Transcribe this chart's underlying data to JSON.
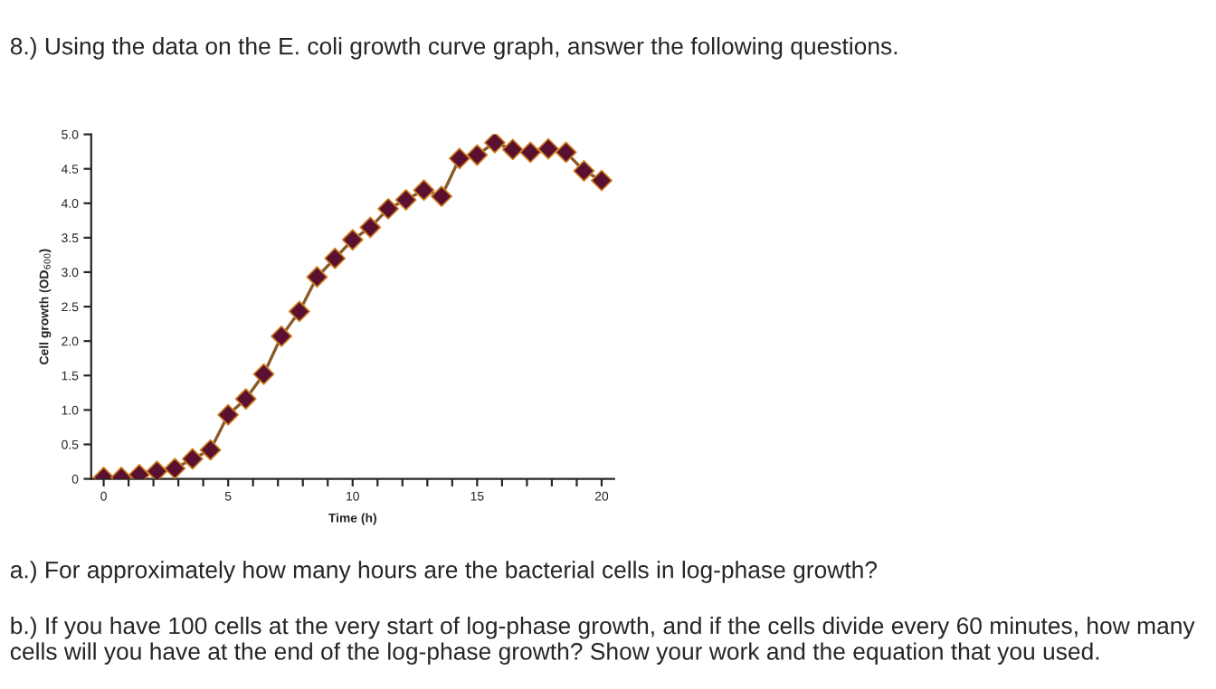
{
  "chart_data": {
    "type": "line",
    "title": "8.) Using the data on the E. coli growth curve graph, answer the following questions.",
    "xlabel": "Time (h)",
    "ylabel": "Cell growth (OD$_{600}$)",
    "x": [
      0,
      0.71,
      1.43,
      2.14,
      2.86,
      3.57,
      4.29,
      5,
      5.71,
      6.43,
      7.14,
      7.86,
      8.57,
      9.29,
      10,
      10.71,
      11.43,
      12.14,
      12.86,
      13.57,
      14.29,
      15,
      15.71,
      16.43,
      17.14,
      17.86,
      18.57,
      19.29,
      20
    ],
    "series": [
      {
        "color": "#5a1030",
        "values": [
          0.02,
          0.02,
          0.06,
          0.11,
          0.15,
          0.29,
          0.42,
          0.93,
          1.16,
          1.52,
          2.07,
          2.43,
          2.93,
          3.2,
          3.47,
          3.65,
          3.92,
          4.05,
          4.19,
          4.1,
          4.65,
          4.7,
          4.88,
          4.78,
          4.74,
          4.79,
          4.74,
          4.47,
          4.33
        ]
      }
    ],
    "marker": "diamond",
    "line_style": "solid",
    "grid": false,
    "legend": false,
    "xlim": [
      -0.5,
      20.5
    ],
    "ylim": [
      0,
      5.0
    ],
    "xticks": [
      0,
      {
        "value": 1,
        "label": null
      },
      {
        "value": 2,
        "label": null
      },
      {
        "value": 3,
        "label": null
      },
      {
        "value": 4,
        "label": null
      },
      5,
      {
        "value": 6,
        "label": null
      },
      {
        "value": 7,
        "label": null
      },
      {
        "value": 8,
        "label": null
      },
      {
        "value": 9,
        "label": null
      },
      10,
      {
        "value": 11,
        "label": null
      },
      {
        "value": 12,
        "label": null
      },
      {
        "value": 13,
        "label": null
      },
      {
        "value": 14,
        "label": null
      },
      15,
      {
        "value": 16,
        "label": null
      },
      {
        "value": 17,
        "label": null
      },
      {
        "value": 18,
        "label": null
      },
      {
        "value": 19,
        "label": null
      },
      20
    ],
    "yticks": [
      0,
      {
        "value": 0.5,
        "label": "0.5"
      },
      {
        "value": 1,
        "label": "1.0"
      },
      {
        "value": 1.5,
        "label": "1.5"
      },
      {
        "value": 2,
        "label": "2.0"
      },
      {
        "value": 2.5,
        "label": "2.5"
      },
      {
        "value": 3,
        "label": "3.0"
      },
      {
        "value": 3.5,
        "label": "3.5"
      },
      {
        "value": 4,
        "label": "4.0"
      },
      {
        "value": 4.5,
        "label": "4.5"
      },
      {
        "value": 5,
        "label": "5.0"
      }
    ],
    "annotations": [
      "a.) For approximately how many hours are the bacterial cells in log-phase growth?",
      "b.) If you have 100 cells at the very start of log-phase growth, and if the cells divide every 60 minutes, how many cells will you have at the end of the log-phase growth? Show your work and the equation that you used."
    ]
  }
}
